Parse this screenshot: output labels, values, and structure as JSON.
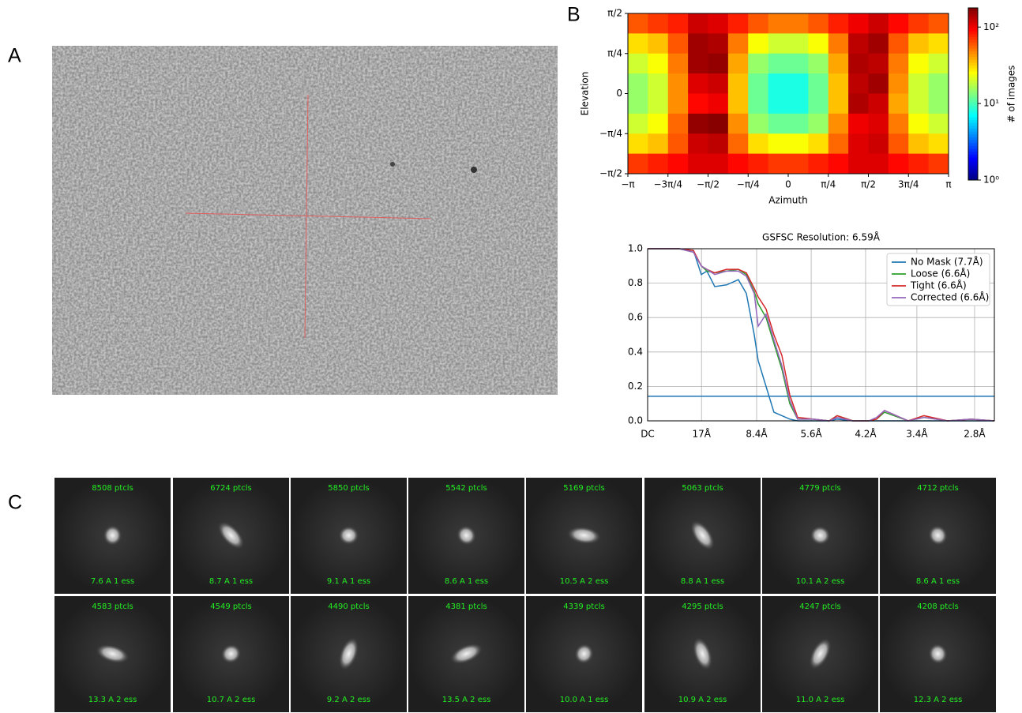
{
  "panel_labels": [
    "A",
    "B",
    "C"
  ],
  "chart_data": [
    {
      "type": "heatmap",
      "xlabel": "Azimuth",
      "ylabel": "Elevation",
      "colorbar_label": "# of images",
      "xlim": [
        -3.1416,
        3.1416
      ],
      "ylim": [
        -1.5708,
        1.5708
      ],
      "xticks": [
        {
          "value": -3.1416,
          "label": "−π"
        },
        {
          "value": -2.3562,
          "label": "−3π/4"
        },
        {
          "value": -1.5708,
          "label": "−π/2"
        },
        {
          "value": -0.7854,
          "label": "−π/4"
        },
        0,
        {
          "value": 0.7854,
          "label": "π/4"
        },
        {
          "value": 1.5708,
          "label": "π/2"
        },
        {
          "value": 2.3562,
          "label": "3π/4"
        },
        {
          "value": 3.1416,
          "label": "π"
        }
      ],
      "yticks": [
        {
          "value": 1.5708,
          "label": "π/2"
        },
        {
          "value": 0.7854,
          "label": "π/4"
        },
        0,
        {
          "value": -0.7854,
          "label": "−π/4"
        },
        {
          "value": -1.5708,
          "label": "−π/2"
        }
      ],
      "color_scale": "log",
      "colorbar_lim": [
        1,
        178
      ],
      "colorbar_ticks": [
        {
          "value": 1,
          "label": "10⁰"
        },
        {
          "value": 10,
          "label": "10¹"
        },
        {
          "value": 100,
          "label": "10²"
        }
      ],
      "values": [
        [
          60,
          70,
          80,
          120,
          110,
          80,
          60,
          50,
          50,
          60,
          80,
          100,
          120,
          90,
          70,
          60
        ],
        [
          30,
          35,
          60,
          150,
          140,
          50,
          25,
          20,
          20,
          25,
          50,
          130,
          150,
          60,
          35,
          30
        ],
        [
          20,
          25,
          50,
          150,
          160,
          40,
          15,
          12,
          12,
          15,
          40,
          140,
          130,
          50,
          25,
          20
        ],
        [
          15,
          20,
          45,
          110,
          120,
          35,
          12,
          8,
          8,
          12,
          35,
          130,
          150,
          45,
          20,
          15
        ],
        [
          15,
          20,
          45,
          90,
          100,
          35,
          12,
          8,
          8,
          12,
          35,
          140,
          120,
          40,
          20,
          15
        ],
        [
          20,
          25,
          55,
          160,
          170,
          45,
          15,
          12,
          12,
          15,
          45,
          100,
          110,
          50,
          25,
          20
        ],
        [
          30,
          35,
          60,
          120,
          130,
          55,
          30,
          25,
          25,
          30,
          55,
          110,
          120,
          60,
          35,
          30
        ],
        [
          70,
          80,
          90,
          110,
          110,
          90,
          80,
          70,
          70,
          80,
          90,
          110,
          110,
          90,
          80,
          70
        ]
      ]
    },
    {
      "type": "line",
      "title": "GSFSC Resolution: 6.59Å",
      "grid": true,
      "legend": "upper right",
      "xlim": [
        0,
        0.3786
      ],
      "ylim": [
        0,
        1
      ],
      "xticks": [
        {
          "value": 0,
          "label": "DC"
        },
        {
          "value": 0.0588,
          "label": "17Å"
        },
        {
          "value": 0.119,
          "label": "8.4Å"
        },
        {
          "value": 0.1786,
          "label": "5.6Å"
        },
        {
          "value": 0.238,
          "label": "4.2Å"
        },
        {
          "value": 0.294,
          "label": "3.4Å"
        },
        {
          "value": 0.357,
          "label": "2.8Å"
        }
      ],
      "yticks": [
        {
          "value": 0,
          "label": "0.0"
        },
        0.2,
        0.4,
        0.6,
        0.8,
        {
          "value": 1,
          "label": "1.0"
        }
      ],
      "threshold": 0.143,
      "threshold_color": "#1f77b4",
      "x": [
        0,
        0.0345,
        0.05,
        0.0586,
        0.0647,
        0.0733,
        0.0862,
        0.0991,
        0.1078,
        0.1164,
        0.1207,
        0.1293,
        0.1379,
        0.1466,
        0.1552,
        0.1638,
        0.181,
        0.1983,
        0.2069,
        0.2241,
        0.2414,
        0.25,
        0.2586,
        0.2845,
        0.3017,
        0.3276,
        0.3534,
        0.3786
      ],
      "series": [
        {
          "name": "No Mask (7.7Å)",
          "color": "#1f77b4",
          "values": [
            1,
            1,
            0.99,
            0.85,
            0.87,
            0.78,
            0.79,
            0.82,
            0.74,
            0.5,
            0.35,
            0.2,
            0.05,
            0.03,
            0.01,
            0,
            0,
            0,
            0.01,
            0,
            0,
            0,
            0,
            0,
            0,
            0,
            0,
            0
          ]
        },
        {
          "name": "Loose (6.6Å)",
          "color": "#2ca02c",
          "values": [
            1,
            1,
            0.98,
            0.9,
            0.87,
            0.86,
            0.87,
            0.88,
            0.85,
            0.75,
            0.68,
            0.6,
            0.45,
            0.3,
            0.1,
            0.01,
            0.01,
            0,
            0.03,
            0,
            0,
            0.01,
            0.05,
            0,
            0.02,
            0,
            0.01,
            0
          ]
        },
        {
          "name": "Tight (6.6Å)",
          "color": "#d62728",
          "values": [
            1,
            1,
            0.99,
            0.9,
            0.88,
            0.86,
            0.88,
            0.88,
            0.86,
            0.77,
            0.72,
            0.65,
            0.5,
            0.38,
            0.15,
            0.02,
            0.01,
            0,
            0.03,
            0,
            0,
            0.01,
            0.06,
            0,
            0.03,
            0,
            0.01,
            0
          ]
        },
        {
          "name": "Corrected (6.6Å)",
          "color": "#9467bd",
          "values": [
            1,
            1,
            0.98,
            0.9,
            0.88,
            0.85,
            0.87,
            0.87,
            0.84,
            0.74,
            0.55,
            0.62,
            0.47,
            0.32,
            0.12,
            0.01,
            0.01,
            0,
            0.02,
            0,
            0,
            0.02,
            0.06,
            0,
            0.02,
            0,
            0.01,
            0
          ]
        }
      ]
    }
  ],
  "class_averages": [
    {
      "count": "8508 ptcls",
      "stats": "7.6 A 1 ess"
    },
    {
      "count": "6724 ptcls",
      "stats": "8.7 A 1 ess"
    },
    {
      "count": "5850 ptcls",
      "stats": "9.1 A 1 ess"
    },
    {
      "count": "5542 ptcls",
      "stats": "8.6 A 1 ess"
    },
    {
      "count": "5169 ptcls",
      "stats": "10.5 A 2 ess"
    },
    {
      "count": "5063 ptcls",
      "stats": "8.8 A 1 ess"
    },
    {
      "count": "4779 ptcls",
      "stats": "10.1 A 2 ess"
    },
    {
      "count": "4712 ptcls",
      "stats": "8.6 A 1 ess"
    },
    {
      "count": "4583 ptcls",
      "stats": "13.3 A 2 ess"
    },
    {
      "count": "4549 ptcls",
      "stats": "10.7 A 2 ess"
    },
    {
      "count": "4490 ptcls",
      "stats": "9.2 A 2 ess"
    },
    {
      "count": "4381 ptcls",
      "stats": "13.5 A 2 ess"
    },
    {
      "count": "4339 ptcls",
      "stats": "10.0 A 1 ess"
    },
    {
      "count": "4295 ptcls",
      "stats": "10.9 A 2 ess"
    },
    {
      "count": "4247 ptcls",
      "stats": "11.0 A 2 ess"
    },
    {
      "count": "4208 ptcls",
      "stats": "12.3 A 2 ess"
    }
  ]
}
